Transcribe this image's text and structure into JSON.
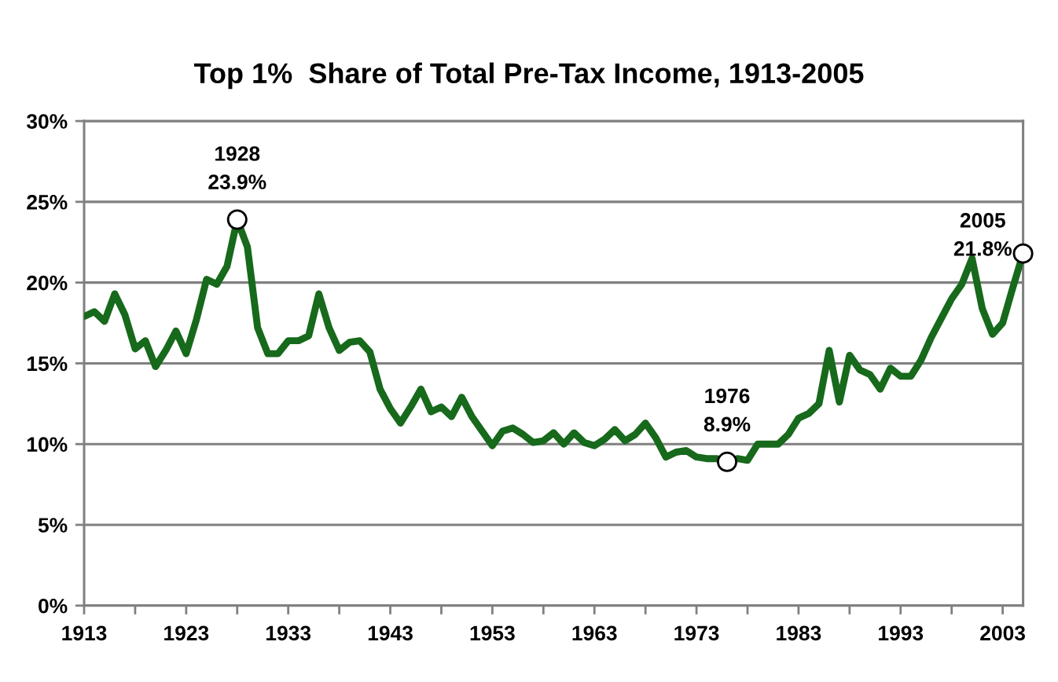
{
  "chart_data": {
    "type": "line",
    "title": "Top 1%  Share of Total Pre-Tax Income, 1913-2005",
    "x": [
      1913,
      1914,
      1915,
      1916,
      1917,
      1918,
      1919,
      1920,
      1921,
      1922,
      1923,
      1924,
      1925,
      1926,
      1927,
      1928,
      1929,
      1930,
      1931,
      1932,
      1933,
      1934,
      1935,
      1936,
      1937,
      1938,
      1939,
      1940,
      1941,
      1942,
      1943,
      1944,
      1945,
      1946,
      1947,
      1948,
      1949,
      1950,
      1951,
      1952,
      1953,
      1954,
      1955,
      1956,
      1957,
      1958,
      1959,
      1960,
      1961,
      1962,
      1963,
      1964,
      1965,
      1966,
      1967,
      1968,
      1969,
      1970,
      1971,
      1972,
      1973,
      1974,
      1975,
      1976,
      1977,
      1978,
      1979,
      1980,
      1981,
      1982,
      1983,
      1984,
      1985,
      1986,
      1987,
      1988,
      1989,
      1990,
      1991,
      1992,
      1993,
      1994,
      1995,
      1996,
      1997,
      1998,
      1999,
      2000,
      2001,
      2002,
      2003,
      2004,
      2005
    ],
    "series": [
      {
        "color": "#17691b",
        "marker": "none",
        "line_style": "solid",
        "values": [
          17.9,
          18.2,
          17.6,
          19.3,
          18.0,
          15.9,
          16.4,
          14.8,
          15.8,
          17.0,
          15.6,
          17.7,
          20.2,
          19.9,
          21.0,
          23.9,
          22.2,
          17.2,
          15.6,
          15.6,
          16.4,
          16.4,
          16.7,
          19.3,
          17.2,
          15.8,
          16.3,
          16.4,
          15.7,
          13.4,
          12.2,
          11.3,
          12.3,
          13.4,
          12.0,
          12.3,
          11.7,
          12.9,
          11.7,
          10.8,
          9.9,
          10.8,
          11.0,
          10.6,
          10.1,
          10.2,
          10.7,
          10.0,
          10.7,
          10.1,
          9.9,
          10.3,
          10.9,
          10.2,
          10.6,
          11.3,
          10.4,
          9.2,
          9.5,
          9.6,
          9.2,
          9.1,
          9.1,
          8.9,
          9.1,
          9.0,
          10.0,
          10.0,
          10.0,
          10.6,
          11.6,
          11.9,
          12.5,
          15.8,
          12.6,
          15.5,
          14.6,
          14.3,
          13.4,
          14.7,
          14.2,
          14.2,
          15.2,
          16.6,
          17.8,
          19.0,
          19.9,
          21.5,
          18.4,
          16.8,
          17.5,
          19.7,
          21.8
        ]
      },
      {
        "type": "scatter",
        "color": "#ffffff",
        "marker": "circle",
        "x": [
          1928,
          1976,
          2005
        ],
        "values": [
          23.9,
          8.9,
          21.8
        ]
      }
    ],
    "annotations": [
      {
        "text": "1928\n23.9%",
        "x": 1928,
        "y": 23.9
      },
      {
        "text": "1976\n8.9%",
        "x": 1976,
        "y": 8.9
      },
      {
        "text": "2005\n21.8%",
        "x": 2005,
        "y": 21.8
      }
    ],
    "xlim": [
      1913,
      2005
    ],
    "xticks": [
      1913,
      {
        "value": 1918,
        "label": null
      },
      1923,
      {
        "value": 1928,
        "label": null
      },
      1933,
      {
        "value": 1938,
        "label": null
      },
      1943,
      {
        "value": 1948,
        "label": null
      },
      1953,
      {
        "value": 1958,
        "label": null
      },
      1963,
      {
        "value": 1968,
        "label": null
      },
      1973,
      {
        "value": 1978,
        "label": null
      },
      1983,
      {
        "value": 1988,
        "label": null
      },
      1993,
      {
        "value": 1998,
        "label": null
      },
      2003
    ],
    "ylim": [
      0,
      30
    ],
    "yticks": [
      {
        "value": 0,
        "label": "0%"
      },
      {
        "value": 5,
        "label": "5%"
      },
      {
        "value": 10,
        "label": "10%"
      },
      {
        "value": 15,
        "label": "15%"
      },
      {
        "value": 20,
        "label": "20%"
      },
      {
        "value": 25,
        "label": "25%"
      },
      {
        "value": 30,
        "label": "30%"
      }
    ],
    "grid": "y",
    "legend": false
  }
}
